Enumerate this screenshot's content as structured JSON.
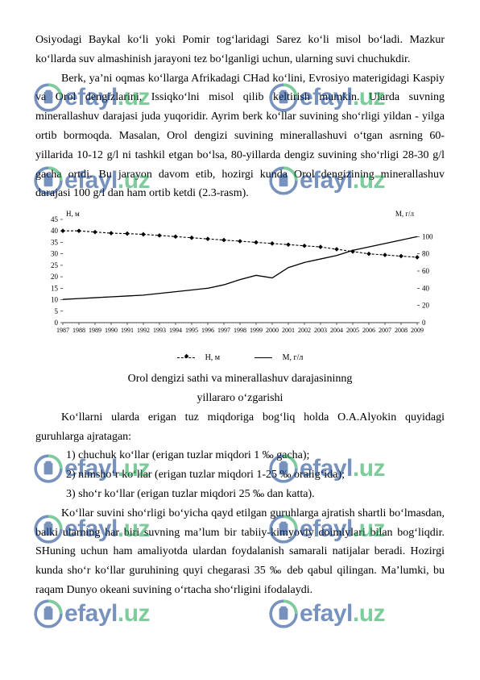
{
  "p1": "Osiyodagi Baykal koʻli yoki Pomir  togʻlaridagi Sarez koʻli misol boʻladi. Mazkur koʻllarda suv almashinish jarayoni tez boʻlganligi uchun, ularning suvi chuchukdir.",
  "p2": "Berk, yaʼni oqmas koʻllarga Afrikadagi CHad koʻlini, Evrosiyo materigidagi Kaspiy va Orol dengizlarini, Issiqkoʻlni misol qilib keltirish mumkin. Ularda suvning minerallashuv darajasi juda yuqoridir. Ayrim berk koʻllar suvining shoʻrligi yildan - yilga ortib bormoqda. Masalan, Orol dengizi suvining minerallashuvi oʻtgan asrning 60-yillarida 10-12 g/l ni tashkil etgan boʻlsa, 80-yillarda dengiz suvining shoʻrligi 28-30 g/l gacha ortdi. Bu jarayon davom etib, hozirgi kunda Orol dengizining minerallashuv darajasi 100 g/l dan ham ortib ketdi (2.3-rasm).",
  "cap1": "Orol dengizi sathi va minerallashuv darajasininng",
  "cap2": "yillararo oʻzgarishi",
  "p3": "Koʻllarni ularda erigan tuz miqdoriga bogʻliq holda O.A.Alyokin quyidagi guruhlarga ajratagan:",
  "li1": "1)  chuchuk koʻllar (erigan tuzlar miqdori 1 ‰ gacha);",
  "li2": "2)  nimshoʻr koʻllar (erigan tuzlar miqdori 1-25 ‰ oraligʻida);",
  "li3": "3)  shoʻr koʻllar (erigan tuzlar miqdori  25 ‰  dan katta).",
  "p4": "Koʻllar suvini shoʻrligi boʻyicha qayd etilgan guruhlarga ajratish shartli boʻlmasdan, balki ularning har biri suvning maʼlum bir tabiiy-kimyoviy doimiylari bilan bogʻliqdir. SHuning uchun ham amaliyotda ulardan foydalanish samarali natijalar beradi. Hozirgi kunda shoʻr koʻllar guruhining quyi chegarasi 35 ‰ deb qabul qilingan. Maʼlumki, bu raqam Dunyo okeani suvining oʻrtacha shoʻrligini ifodalaydi.",
  "chart": {
    "type": "line",
    "axis_left_label": "H, м",
    "axis_right_label": "М, г/л",
    "years": [
      "1987",
      "1988",
      "1989",
      "1990",
      "1991",
      "1992",
      "1993",
      "1994",
      "1995",
      "1996",
      "1997",
      "1998",
      "1999",
      "2000",
      "2001",
      "2002",
      "2003",
      "2004",
      "2005",
      "2006",
      "2007",
      "2008",
      "2009"
    ],
    "left_ticks": [
      0,
      5,
      10,
      15,
      20,
      25,
      30,
      35,
      40,
      45
    ],
    "right_ticks": [
      0,
      20,
      40,
      60,
      80,
      100
    ],
    "left_lim": [
      0,
      45
    ],
    "right_lim": [
      0,
      120
    ],
    "series_h": {
      "label": "H, м",
      "values": [
        40,
        40,
        39.5,
        39,
        38.8,
        38.5,
        38,
        37.5,
        37,
        36.5,
        36,
        35.5,
        35,
        34.5,
        34,
        33.5,
        33,
        32,
        31,
        30,
        29.5,
        29,
        28.5
      ],
      "color": "#000000",
      "style": "dashed",
      "marker": "diamond"
    },
    "series_m": {
      "label": "М, г/л",
      "values": [
        27,
        28,
        29,
        30,
        31,
        32,
        34,
        36,
        38,
        40,
        44,
        50,
        55,
        52,
        64,
        70,
        74,
        78,
        84,
        88,
        92,
        96,
        100
      ],
      "color": "#000000",
      "style": "solid",
      "marker": "none"
    },
    "font_size_axis": 9,
    "grid_color": "#d0d0d0",
    "background_color": "#ffffff"
  },
  "legend": {
    "h": "H, м",
    "m": "М, г/л"
  },
  "watermark": {
    "brand": "efayl",
    "tld": ".uz",
    "color_brand": "#0a3a8a",
    "color_tld": "#16a34a"
  }
}
